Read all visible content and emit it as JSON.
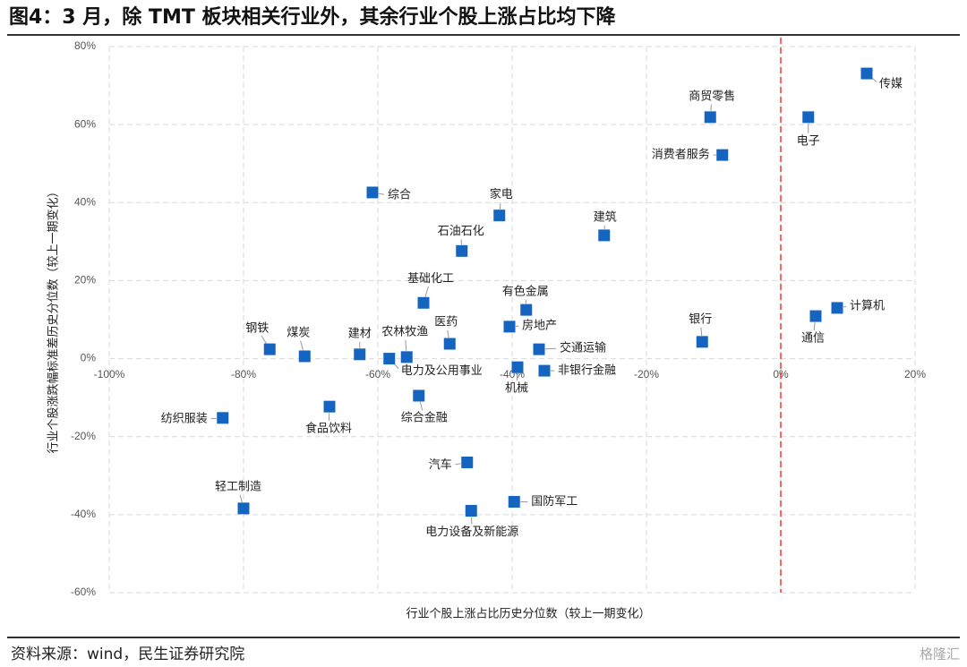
{
  "chart_data": {
    "type": "scatter",
    "title": "图4：3 月，除 TMT 板块相关行业外，其余行业个股上涨占比均下降",
    "x_label": "行业个股上涨占比历史分位数（较上一期变化）",
    "y_label": "行业个股涨跌幅标准差历史分位数（较上一期变化）",
    "source": "资料来源：wind，民生证券研究院",
    "watermark": "格隆汇",
    "color": "#1565c0",
    "reference_x": 0,
    "reference_color": "#ff3333",
    "grid": true,
    "labels": [
      "传媒",
      "商贸零售",
      "电子",
      "消费者服务",
      "综合",
      "家电",
      "建筑",
      "石油石化",
      "基础化工",
      "有色金属",
      "计算机",
      "通信",
      "房地产",
      "银行",
      "医药",
      "钢铁",
      "交通运输",
      "煤炭",
      "建材",
      "农林牧渔",
      "电力及公用事业",
      "机械",
      "非银行金融",
      "综合金融",
      "食品饮料",
      "纺织服装",
      "汽车",
      "国防军工",
      "电力设备及新能源",
      "轻工制造"
    ],
    "x": [
      12.8,
      -10.5,
      4.1,
      -8.7,
      -60.8,
      -41.9,
      -26.3,
      -47.5,
      -53.2,
      -37.9,
      8.4,
      5.2,
      -40.4,
      -11.7,
      -49.3,
      -76.1,
      -36,
      -70.9,
      -62.7,
      -55.7,
      -58.3,
      -39.2,
      -35.2,
      -53.9,
      -67.2,
      -83.1,
      -46.7,
      -39.7,
      -46.1,
      -80
    ],
    "values": [
      73.1,
      61.9,
      61.9,
      52.2,
      42.6,
      36.7,
      31.6,
      27.6,
      14.3,
      12.5,
      13.0,
      10.9,
      8.2,
      4.3,
      3.8,
      2.4,
      2.4,
      0.6,
      1.1,
      0.4,
      0,
      -2.2,
      -3.1,
      -9.5,
      -12.3,
      -15.2,
      -26.6,
      -36.7,
      -39,
      -38.4
    ],
    "xlim": [
      -100,
      20
    ],
    "xticks": [
      {
        "value": -100,
        "label": "-100%"
      },
      {
        "value": -80,
        "label": "-80%"
      },
      {
        "value": -60,
        "label": "-60%"
      },
      {
        "value": -40,
        "label": "-40%"
      },
      {
        "value": -20,
        "label": "-20%"
      },
      {
        "value": 0,
        "label": "0%"
      },
      {
        "value": 20,
        "label": "20%"
      }
    ],
    "ylim": [
      -60,
      80
    ],
    "yticks": [
      {
        "value": -60,
        "label": "-60%"
      },
      {
        "value": -40,
        "label": "-40%"
      },
      {
        "value": -20,
        "label": "-20%"
      },
      {
        "value": 0,
        "label": "0%"
      },
      {
        "value": 20,
        "label": "20%"
      },
      {
        "value": 40,
        "label": "40%"
      },
      {
        "value": 60,
        "label": "60%"
      },
      {
        "value": 80,
        "label": "80%"
      }
    ]
  }
}
